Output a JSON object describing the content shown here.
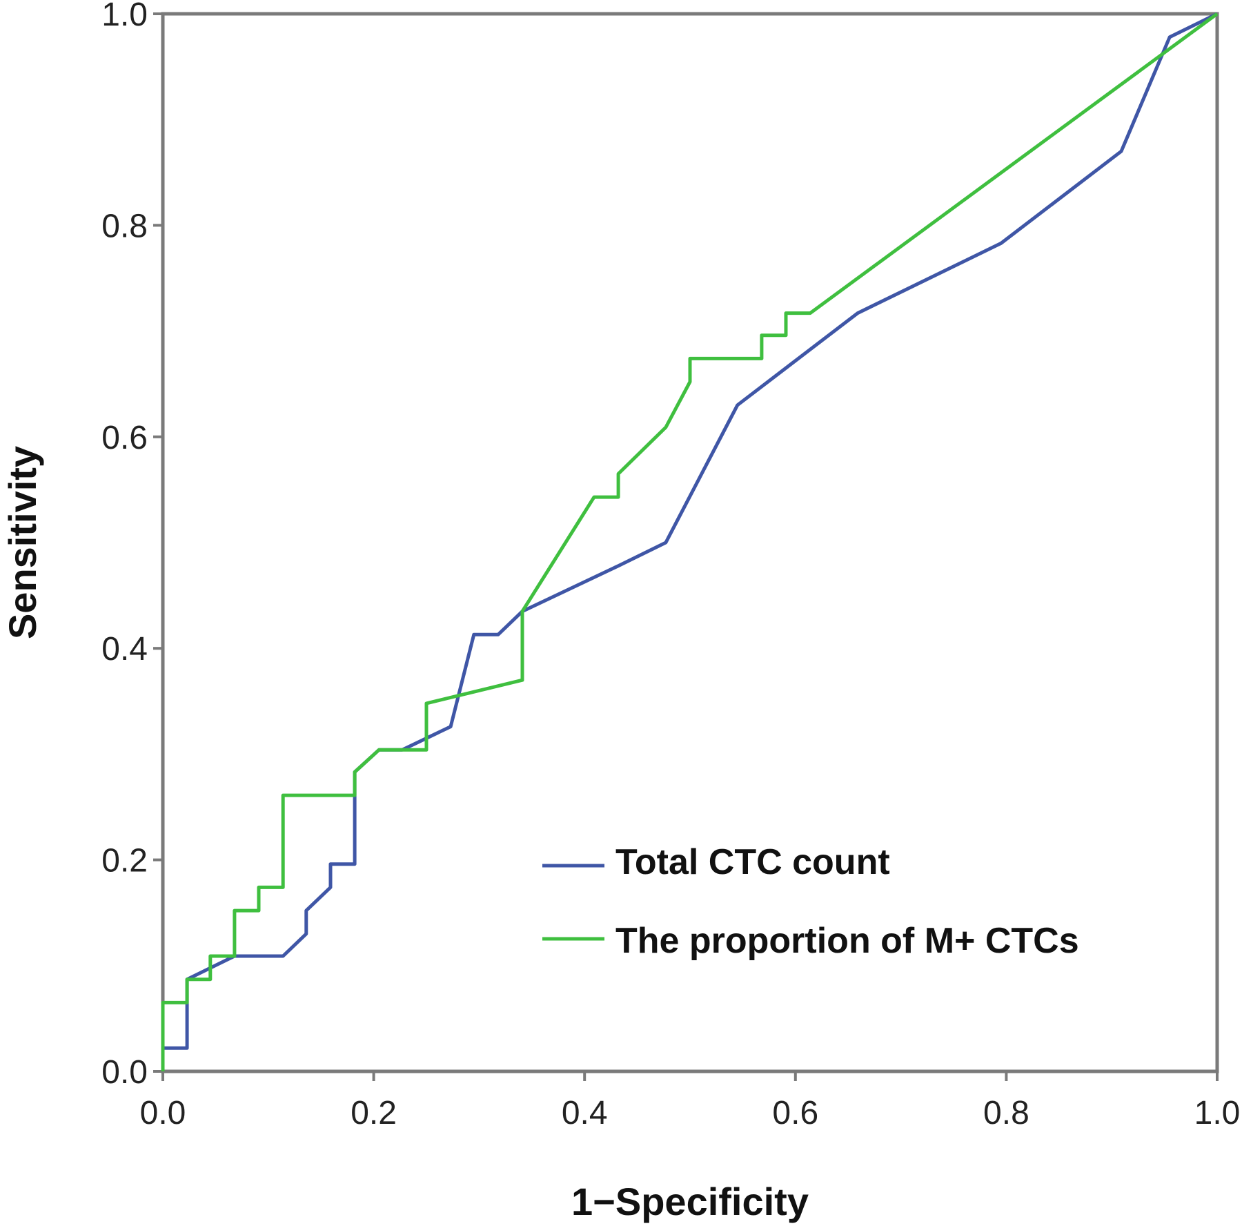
{
  "chart_data": {
    "type": "line",
    "xlabel": "1−Specificity",
    "ylabel": "Sensitivity",
    "xlim": [
      0,
      1
    ],
    "ylim": [
      0,
      1
    ],
    "x_ticks": [
      "0.0",
      "0.2",
      "0.4",
      "0.6",
      "0.8",
      "1.0"
    ],
    "y_ticks": [
      "0.0",
      "0.2",
      "0.4",
      "0.6",
      "0.8",
      "1.0"
    ],
    "grid": false,
    "legend_position": "bottom-right",
    "series": [
      {
        "name": "Total CTC count",
        "color": "#3f56a6",
        "x": [
          0.0,
          0.0,
          0.023,
          0.023,
          0.068,
          0.114,
          0.136,
          0.136,
          0.159,
          0.159,
          0.182,
          0.182,
          0.205,
          0.227,
          0.273,
          0.295,
          0.318,
          0.341,
          0.432,
          0.477,
          0.545,
          0.659,
          0.795,
          0.909,
          0.955,
          1.0
        ],
        "y": [
          0.0,
          0.022,
          0.022,
          0.087,
          0.109,
          0.109,
          0.13,
          0.152,
          0.174,
          0.196,
          0.196,
          0.283,
          0.304,
          0.304,
          0.326,
          0.413,
          0.413,
          0.435,
          0.478,
          0.5,
          0.63,
          0.717,
          0.783,
          0.87,
          0.978,
          1.0
        ]
      },
      {
        "name": "The proportion of M+ CTCs",
        "color": "#3fbf3f",
        "x": [
          0.0,
          0.0,
          0.023,
          0.023,
          0.045,
          0.045,
          0.068,
          0.068,
          0.091,
          0.091,
          0.114,
          0.114,
          0.182,
          0.182,
          0.205,
          0.25,
          0.25,
          0.341,
          0.341,
          0.409,
          0.432,
          0.432,
          0.477,
          0.5,
          0.5,
          0.568,
          0.568,
          0.591,
          0.591,
          0.614,
          1.0
        ],
        "y": [
          0.0,
          0.065,
          0.065,
          0.087,
          0.087,
          0.109,
          0.109,
          0.152,
          0.152,
          0.174,
          0.174,
          0.261,
          0.261,
          0.283,
          0.304,
          0.304,
          0.348,
          0.37,
          0.435,
          0.543,
          0.543,
          0.565,
          0.609,
          0.652,
          0.674,
          0.674,
          0.696,
          0.696,
          0.717,
          0.717,
          1.0
        ]
      }
    ]
  }
}
